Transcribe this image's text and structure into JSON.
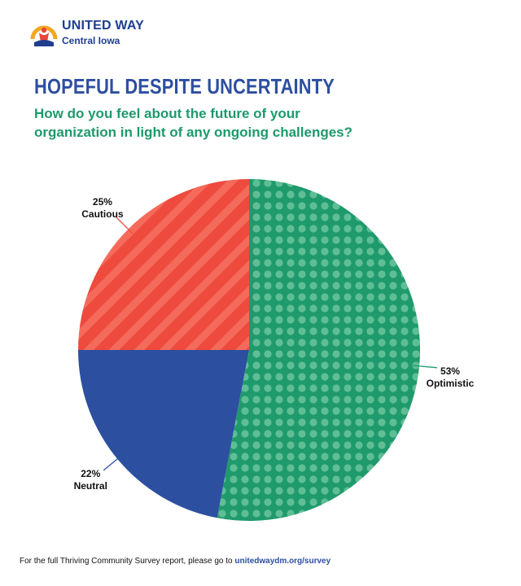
{
  "logo": {
    "name": "UNITED WAY",
    "sub": "Central Iowa",
    "icon": "united-way-hand-rainbow-icon"
  },
  "title": "HOPEFUL DESPITE UNCERTAINTY",
  "subtitle_line1": "How do you feel about the future of your",
  "subtitle_line2": "organization in light of any ongoing challenges?",
  "footer": {
    "text": "For the full Thriving Community Survey report, please go to ",
    "link": "unitedwaydm.org/survey"
  },
  "chart_data": {
    "type": "pie",
    "slices": [
      {
        "label": "Optimistic",
        "value": 53,
        "display": "53%",
        "color": "#1f9a6c",
        "pattern": "dots"
      },
      {
        "label": "Neutral",
        "value": 22,
        "display": "22%",
        "color": "#2c4fa0",
        "pattern": "solid"
      },
      {
        "label": "Cautious",
        "value": 25,
        "display": "25%",
        "color": "#ee4a3d",
        "pattern": "stripes"
      }
    ]
  }
}
